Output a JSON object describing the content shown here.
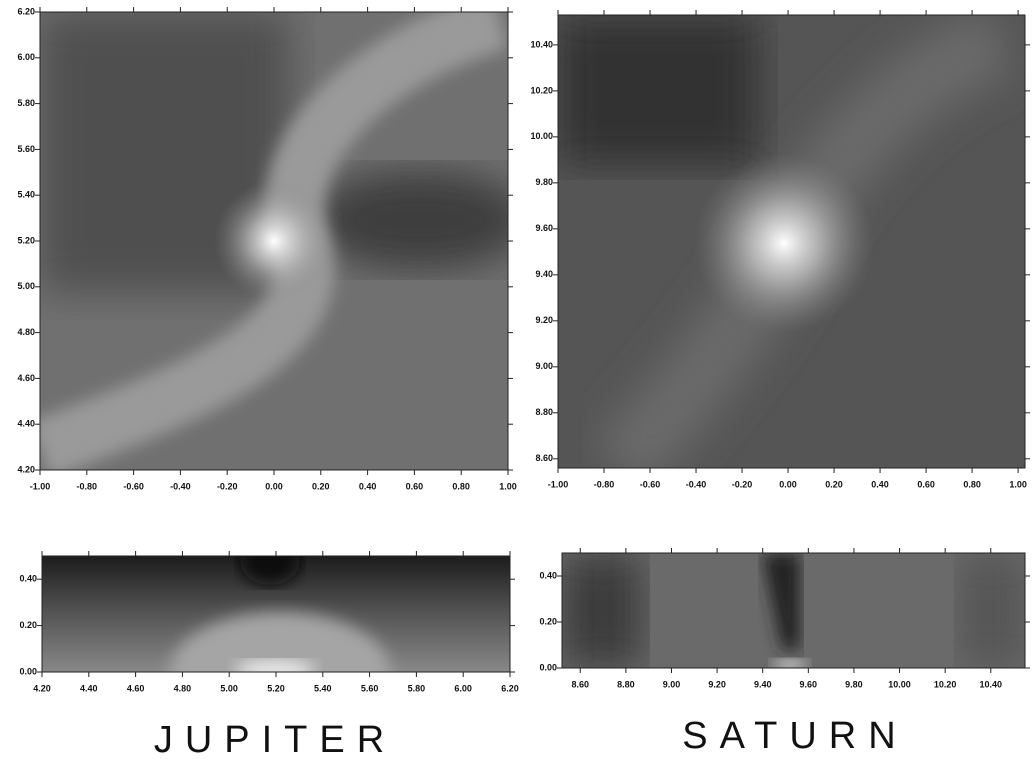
{
  "panels": [
    {
      "xlim": [
        -1,
        1
      ],
      "ylim": [
        4.2,
        6.2
      ],
      "xticks": [
        {
          "value": -1,
          "label": "-1.00"
        },
        {
          "value": -0.8,
          "label": "-0.80"
        },
        {
          "value": -0.6,
          "label": "-0.60"
        },
        {
          "value": -0.4,
          "label": "-0.40"
        },
        {
          "value": -0.2,
          "label": "-0.20"
        },
        {
          "value": 0,
          "label": "0.00"
        },
        {
          "value": 0.2,
          "label": "0.20"
        },
        {
          "value": 0.4,
          "label": "0.40"
        },
        {
          "value": 0.6,
          "label": "0.60"
        },
        {
          "value": 0.8,
          "label": "0.80"
        },
        {
          "value": 1,
          "label": "1.00"
        }
      ],
      "yticks": [
        {
          "value": 4.2,
          "label": "4.20"
        },
        {
          "value": 4.4,
          "label": "4.40"
        },
        {
          "value": 4.6,
          "label": "4.60"
        },
        {
          "value": 4.8,
          "label": "4.80"
        },
        {
          "value": 5,
          "label": "5.00"
        },
        {
          "value": 5.2,
          "label": "5.20"
        },
        {
          "value": 5.4,
          "label": "5.40"
        },
        {
          "value": 5.6,
          "label": "5.60"
        },
        {
          "value": 5.8,
          "label": "5.80"
        },
        {
          "value": 6,
          "label": "6.00"
        },
        {
          "value": 6.2,
          "label": "6.20"
        }
      ]
    },
    {
      "xlim": [
        -1,
        1.03
      ],
      "ylim": [
        8.56,
        10.53
      ],
      "xticks": [
        {
          "value": -1,
          "label": "-1.00"
        },
        {
          "value": -0.8,
          "label": "-0.80"
        },
        {
          "value": -0.6,
          "label": "-0.60"
        },
        {
          "value": -0.4,
          "label": "-0.40"
        },
        {
          "value": -0.2,
          "label": "-0.20"
        },
        {
          "value": 0,
          "label": "0.00"
        },
        {
          "value": 0.2,
          "label": "0.20"
        },
        {
          "value": 0.4,
          "label": "0.40"
        },
        {
          "value": 0.6,
          "label": "0.60"
        },
        {
          "value": 0.8,
          "label": "0.80"
        },
        {
          "value": 1,
          "label": "1.00"
        }
      ],
      "yticks": [
        {
          "value": 8.6,
          "label": "8.60"
        },
        {
          "value": 8.8,
          "label": "8.80"
        },
        {
          "value": 9,
          "label": "9.00"
        },
        {
          "value": 9.2,
          "label": "9.20"
        },
        {
          "value": 9.4,
          "label": "9.40"
        },
        {
          "value": 9.6,
          "label": "9.60"
        },
        {
          "value": 9.8,
          "label": "9.80"
        },
        {
          "value": 10,
          "label": "10.00"
        },
        {
          "value": 10.2,
          "label": "10.20"
        },
        {
          "value": 10.4,
          "label": "10.40"
        }
      ]
    },
    {
      "xlim": [
        4.2,
        6.2
      ],
      "ylim": [
        0,
        0.5
      ],
      "xticks": [
        {
          "value": 4.2,
          "label": "4.20"
        },
        {
          "value": 4.4,
          "label": "4.40"
        },
        {
          "value": 4.6,
          "label": "4.60"
        },
        {
          "value": 4.8,
          "label": "4.80"
        },
        {
          "value": 5,
          "label": "5.00"
        },
        {
          "value": 5.2,
          "label": "5.20"
        },
        {
          "value": 5.4,
          "label": "5.40"
        },
        {
          "value": 5.6,
          "label": "5.60"
        },
        {
          "value": 5.8,
          "label": "5.80"
        },
        {
          "value": 6,
          "label": "6.00"
        },
        {
          "value": 6.2,
          "label": "6.20"
        }
      ],
      "yticks": [
        {
          "value": 0,
          "label": "0.00"
        },
        {
          "value": 0.2,
          "label": "0.20"
        },
        {
          "value": 0.4,
          "label": "0.40"
        }
      ]
    },
    {
      "xlim": [
        8.52,
        10.55
      ],
      "ylim": [
        0,
        0.5
      ],
      "xticks": [
        {
          "value": 8.6,
          "label": "8.60"
        },
        {
          "value": 8.8,
          "label": "8.80"
        },
        {
          "value": 9,
          "label": "9.00"
        },
        {
          "value": 9.2,
          "label": "9.20"
        },
        {
          "value": 9.4,
          "label": "9.40"
        },
        {
          "value": 9.6,
          "label": "9.60"
        },
        {
          "value": 9.8,
          "label": "9.80"
        },
        {
          "value": 10,
          "label": "10.00"
        },
        {
          "value": 10.2,
          "label": "10.20"
        },
        {
          "value": 10.4,
          "label": "10.40"
        }
      ],
      "yticks": [
        {
          "value": 0,
          "label": "0.00"
        },
        {
          "value": 0.2,
          "label": "0.20"
        },
        {
          "value": 0.4,
          "label": "0.40"
        }
      ]
    }
  ],
  "captions": [
    "JUPITER",
    "SATURN"
  ]
}
